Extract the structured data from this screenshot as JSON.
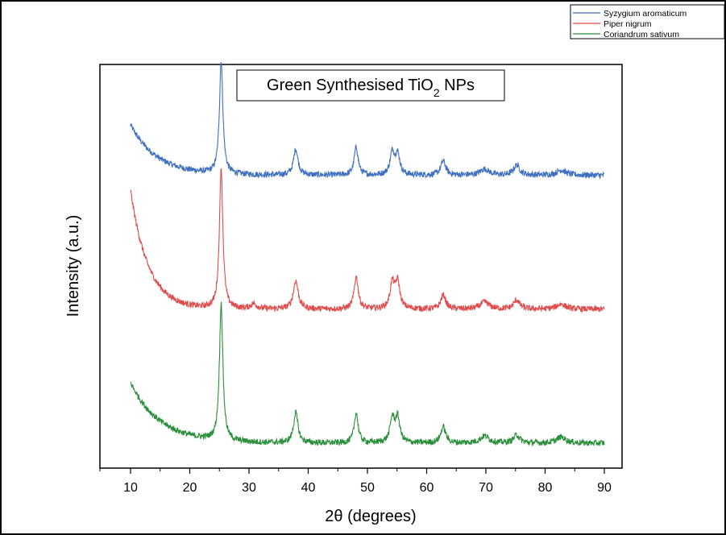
{
  "chart_data": {
    "type": "line",
    "title": "Green Synthesised TiO2 NPs",
    "title_parts": {
      "main": "Green Synthesised TiO",
      "sub": "2",
      "suffix": " NPs"
    },
    "xlabel": "2θ (degrees)",
    "ylabel": "Intensity (a.u.)",
    "xlim": [
      10,
      90
    ],
    "xticks": [
      "10",
      "20",
      "30",
      "40",
      "50",
      "60",
      "70",
      "80",
      "90"
    ],
    "y_ticks_shown": false,
    "grid": false,
    "legend_position": "top-right",
    "series": [
      {
        "name": "Syzygium aromaticum",
        "color": "#3f6fbf",
        "offset": 2.0,
        "start_level": 0.5,
        "base_level": 0.0,
        "decay_width": 4.5,
        "peaks": [
          {
            "pos": 25.3,
            "height": 1.12,
            "width": 0.35
          },
          {
            "pos": 37.9,
            "height": 0.26,
            "width": 0.45
          },
          {
            "pos": 48.1,
            "height": 0.28,
            "width": 0.4
          },
          {
            "pos": 54.2,
            "height": 0.22,
            "width": 0.45
          },
          {
            "pos": 55.1,
            "height": 0.2,
            "width": 0.45
          },
          {
            "pos": 62.8,
            "height": 0.14,
            "width": 0.5
          },
          {
            "pos": 69.8,
            "height": 0.06,
            "width": 0.9
          },
          {
            "pos": 75.2,
            "height": 0.1,
            "width": 0.6
          },
          {
            "pos": 82.7,
            "height": 0.05,
            "width": 0.9
          }
        ]
      },
      {
        "name": "Piper nigrum",
        "color": "#e04c4c",
        "offset": 1.0,
        "start_level": 1.18,
        "base_level": 0.0,
        "decay_width": 3.0,
        "peaks": [
          {
            "pos": 25.3,
            "height": 1.4,
            "width": 0.35
          },
          {
            "pos": 30.8,
            "height": 0.05,
            "width": 0.6
          },
          {
            "pos": 37.9,
            "height": 0.28,
            "width": 0.5
          },
          {
            "pos": 48.1,
            "height": 0.32,
            "width": 0.42
          },
          {
            "pos": 54.2,
            "height": 0.25,
            "width": 0.45
          },
          {
            "pos": 55.1,
            "height": 0.26,
            "width": 0.45
          },
          {
            "pos": 62.8,
            "height": 0.14,
            "width": 0.5
          },
          {
            "pos": 69.8,
            "height": 0.07,
            "width": 0.9
          },
          {
            "pos": 75.2,
            "height": 0.09,
            "width": 0.6
          },
          {
            "pos": 82.7,
            "height": 0.05,
            "width": 0.9
          }
        ]
      },
      {
        "name": "Coriandrum sativum",
        "color": "#2a8f3a",
        "offset": 0.0,
        "start_level": 0.6,
        "base_level": 0.0,
        "decay_width": 5.0,
        "peaks": [
          {
            "pos": 25.3,
            "height": 1.36,
            "width": 0.35
          },
          {
            "pos": 37.9,
            "height": 0.3,
            "width": 0.45
          },
          {
            "pos": 48.1,
            "height": 0.3,
            "width": 0.4
          },
          {
            "pos": 54.2,
            "height": 0.24,
            "width": 0.45
          },
          {
            "pos": 55.1,
            "height": 0.24,
            "width": 0.45
          },
          {
            "pos": 62.8,
            "height": 0.16,
            "width": 0.5
          },
          {
            "pos": 69.8,
            "height": 0.07,
            "width": 0.9
          },
          {
            "pos": 75.2,
            "height": 0.08,
            "width": 0.6
          },
          {
            "pos": 82.7,
            "height": 0.06,
            "width": 0.9
          }
        ]
      }
    ]
  }
}
